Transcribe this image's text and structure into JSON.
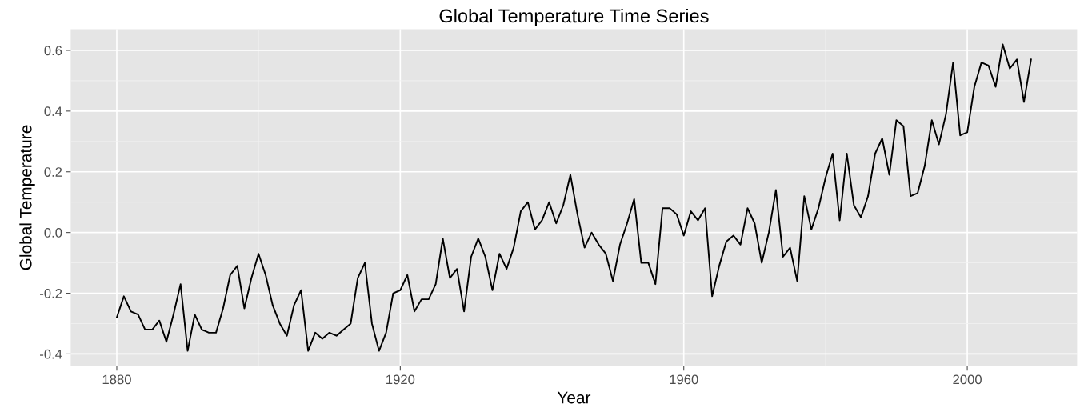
{
  "chart_data": {
    "type": "line",
    "title": "Global Temperature Time Series",
    "xlabel": "Year",
    "ylabel": "Global Temperature",
    "x": [
      1880,
      1881,
      1882,
      1883,
      1884,
      1885,
      1886,
      1887,
      1888,
      1889,
      1890,
      1891,
      1892,
      1893,
      1894,
      1895,
      1896,
      1897,
      1898,
      1899,
      1900,
      1901,
      1902,
      1903,
      1904,
      1905,
      1906,
      1907,
      1908,
      1909,
      1910,
      1911,
      1912,
      1913,
      1914,
      1915,
      1916,
      1917,
      1918,
      1919,
      1920,
      1921,
      1922,
      1923,
      1924,
      1925,
      1926,
      1927,
      1928,
      1929,
      1930,
      1931,
      1932,
      1933,
      1934,
      1935,
      1936,
      1937,
      1938,
      1939,
      1940,
      1941,
      1942,
      1943,
      1944,
      1945,
      1946,
      1947,
      1948,
      1949,
      1950,
      1951,
      1952,
      1953,
      1954,
      1955,
      1956,
      1957,
      1958,
      1959,
      1960,
      1961,
      1962,
      1963,
      1964,
      1965,
      1966,
      1967,
      1968,
      1969,
      1970,
      1971,
      1972,
      1973,
      1974,
      1975,
      1976,
      1977,
      1978,
      1979,
      1980,
      1981,
      1982,
      1983,
      1984,
      1985,
      1986,
      1987,
      1988,
      1989,
      1990,
      1991,
      1992,
      1993,
      1994,
      1995,
      1996,
      1997,
      1998,
      1999,
      2000,
      2001,
      2002,
      2003,
      2004,
      2005,
      2006,
      2007,
      2008,
      2009
    ],
    "series": [
      {
        "color": "#000000",
        "values": [
          -0.28,
          -0.21,
          -0.26,
          -0.27,
          -0.32,
          -0.32,
          -0.29,
          -0.36,
          -0.27,
          -0.17,
          -0.39,
          -0.27,
          -0.32,
          -0.33,
          -0.33,
          -0.25,
          -0.14,
          -0.11,
          -0.25,
          -0.15,
          -0.07,
          -0.14,
          -0.24,
          -0.3,
          -0.34,
          -0.24,
          -0.19,
          -0.39,
          -0.33,
          -0.35,
          -0.33,
          -0.34,
          -0.32,
          -0.3,
          -0.15,
          -0.1,
          -0.3,
          -0.39,
          -0.33,
          -0.2,
          -0.19,
          -0.14,
          -0.26,
          -0.22,
          -0.22,
          -0.17,
          -0.02,
          -0.15,
          -0.12,
          -0.26,
          -0.08,
          -0.02,
          -0.08,
          -0.19,
          -0.07,
          -0.12,
          -0.05,
          0.07,
          0.1,
          0.01,
          0.04,
          0.1,
          0.03,
          0.09,
          0.19,
          0.06,
          -0.05,
          0.0,
          -0.04,
          -0.07,
          -0.16,
          -0.04,
          0.03,
          0.11,
          -0.1,
          -0.1,
          -0.17,
          0.08,
          0.08,
          0.06,
          -0.01,
          0.07,
          0.04,
          0.08,
          -0.21,
          -0.11,
          -0.03,
          -0.01,
          -0.04,
          0.08,
          0.03,
          -0.1,
          0.0,
          0.14,
          -0.08,
          -0.05,
          -0.16,
          0.12,
          0.01,
          0.08,
          0.18,
          0.26,
          0.04,
          0.26,
          0.09,
          0.05,
          0.12,
          0.26,
          0.31,
          0.19,
          0.37,
          0.35,
          0.12,
          0.13,
          0.22,
          0.37,
          0.29,
          0.39,
          0.56,
          0.32,
          0.33,
          0.48,
          0.56,
          0.55,
          0.48,
          0.62,
          0.54,
          0.57,
          0.43,
          0.57
        ]
      }
    ],
    "xlim": [
      1873.5,
      2015.5
    ],
    "ylim": [
      -0.44,
      0.67
    ],
    "xticks": [
      1880,
      1920,
      1960,
      2000
    ],
    "yticks": [
      -0.4,
      -0.2,
      {
        "value": 0,
        "label": "0.0"
      },
      0.2,
      0.4,
      0.6
    ],
    "grid": true,
    "legend": false,
    "marker": "none",
    "line_style": "solid"
  }
}
